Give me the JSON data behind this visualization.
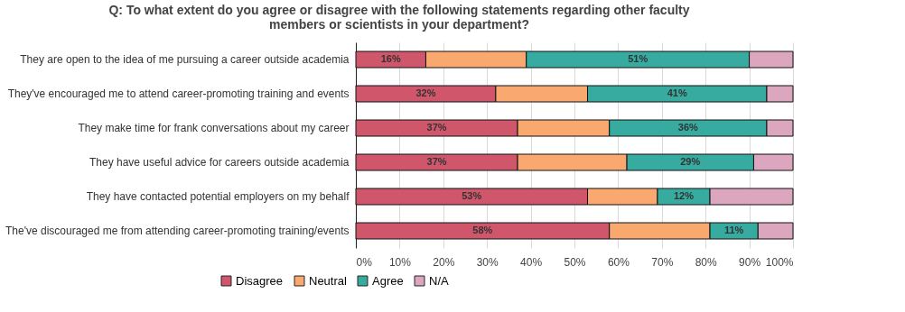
{
  "chart_data": {
    "type": "bar",
    "orientation": "horizontal",
    "stacked": true,
    "title": "Q: To what extent do you agree or disagree with the following statements regarding other faculty members or scientists in your department?",
    "categories": [
      "They are open to the idea of me pursuing a career outside academia",
      "They've encouraged me to attend career-promoting training and events",
      "They make time for frank conversations about my career",
      "They have useful advice for careers outside academia",
      "They have contacted potential employers on my behalf",
      "The've discouraged me from attending career-promoting training/events"
    ],
    "series": [
      {
        "name": "Disagree",
        "color": "#d0576b",
        "values": [
          16,
          32,
          37,
          37,
          53,
          58
        ],
        "value_labels": [
          "16%",
          "32%",
          "37%",
          "37%",
          "53%",
          "58%"
        ]
      },
      {
        "name": "Neutral",
        "color": "#f9a870",
        "values": [
          23,
          21,
          21,
          25,
          16,
          23
        ]
      },
      {
        "name": "Agree",
        "color": "#37ab9f",
        "values": [
          51,
          41,
          36,
          29,
          12,
          11
        ],
        "value_labels": [
          "51%",
          "41%",
          "36%",
          "29%",
          "12%",
          "11%"
        ]
      },
      {
        "name": "N/A",
        "color": "#dba6be",
        "values": [
          10,
          6,
          6,
          9,
          19,
          8
        ]
      }
    ],
    "xlim": [
      0,
      100
    ],
    "xticks": [
      {
        "value": 0,
        "label": "0%"
      },
      {
        "value": 10,
        "label": "10%"
      },
      {
        "value": 20,
        "label": "20%"
      },
      {
        "value": 30,
        "label": "30%"
      },
      {
        "value": 40,
        "label": "40%"
      },
      {
        "value": 50,
        "label": "50%"
      },
      {
        "value": 60,
        "label": "60%"
      },
      {
        "value": 70,
        "label": "70%"
      },
      {
        "value": 80,
        "label": "80%"
      },
      {
        "value": 90,
        "label": "90%"
      },
      {
        "value": 100,
        "label": "100%"
      }
    ],
    "grid": "x",
    "legend": "bottom"
  }
}
